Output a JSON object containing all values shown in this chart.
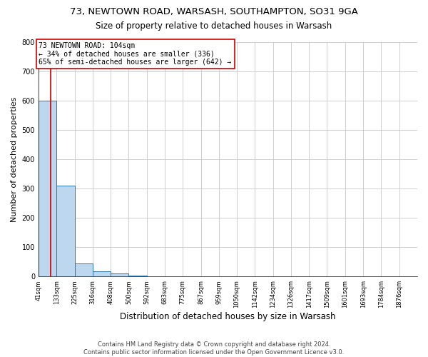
{
  "title": "73, NEWTOWN ROAD, WARSASH, SOUTHAMPTON, SO31 9GA",
  "subtitle": "Size of property relative to detached houses in Warsash",
  "xlabel": "Distribution of detached houses by size in Warsash",
  "ylabel": "Number of detached properties",
  "footer_line1": "Contains HM Land Registry data © Crown copyright and database right 2024.",
  "footer_line2": "Contains public sector information licensed under the Open Government Licence v3.0.",
  "annotation_line1": "73 NEWTOWN ROAD: 104sqm",
  "annotation_line2": "← 34% of detached houses are smaller (336)",
  "annotation_line3": "65% of semi-detached houses are larger (642) →",
  "property_size": 104,
  "bin_edges": [
    41,
    133,
    225,
    316,
    408,
    500,
    592,
    683,
    775,
    867,
    959,
    1050,
    1142,
    1234,
    1326,
    1417,
    1509,
    1601,
    1693,
    1784,
    1876
  ],
  "bar_heights": [
    600,
    310,
    45,
    17,
    10,
    3,
    2,
    0,
    0,
    0,
    0,
    0,
    0,
    0,
    0,
    0,
    0,
    0,
    0,
    0
  ],
  "bar_color": "#bdd7ee",
  "bar_edge_color": "#2e75b6",
  "red_line_color": "#cc0000",
  "annotation_box_color": "#cc0000",
  "ylim": [
    0,
    800
  ],
  "xlim_left": 41,
  "xlim_right": 1968,
  "background_color": "#ffffff",
  "grid_color": "#c8c8c8",
  "title_fontsize": 9.5,
  "subtitle_fontsize": 8.5,
  "ylabel_fontsize": 8,
  "xlabel_fontsize": 8.5,
  "tick_fontsize": 6,
  "footer_fontsize": 6,
  "annotation_fontsize": 7
}
